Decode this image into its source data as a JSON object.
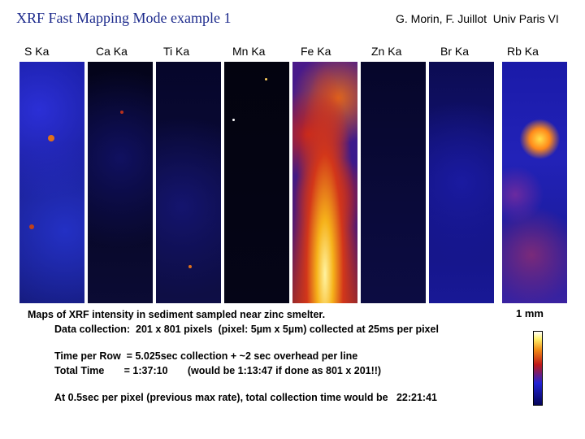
{
  "header": {
    "title": "XRF Fast Mapping Mode example 1",
    "credit": "G. Morin, F. Juillot  Univ Paris VI"
  },
  "maps": [
    {
      "label": "S Ka"
    },
    {
      "label": "Ca Ka"
    },
    {
      "label": "Ti Ka"
    },
    {
      "label": "Mn Ka"
    },
    {
      "label": "Fe Ka"
    },
    {
      "label": "Zn Ka"
    },
    {
      "label": "Br Ka"
    },
    {
      "label": "Rb Ka"
    }
  ],
  "caption": {
    "line1": "Maps of XRF intensity in sediment sampled near zinc smelter.",
    "line2": "Data collection:  201 x 801 pixels  (pixel: 5µm x 5µm) collected at 25ms per pixel",
    "line3": "Time per Row  = 5.025sec collection + ~2 sec overhead per line",
    "line4": "Total Time       = 1:37:10       (would be 1:13:47 if done as 801 x 201!!)",
    "line5": "At 0.5sec per pixel (previous max rate), total collection time would be   22:21:41"
  },
  "scale": {
    "label": "1 mm"
  },
  "colorbar": {
    "colors": [
      "#05055a",
      "#2323d6",
      "#c01818",
      "#f08a16",
      "#fff06a",
      "#ffffff"
    ]
  }
}
